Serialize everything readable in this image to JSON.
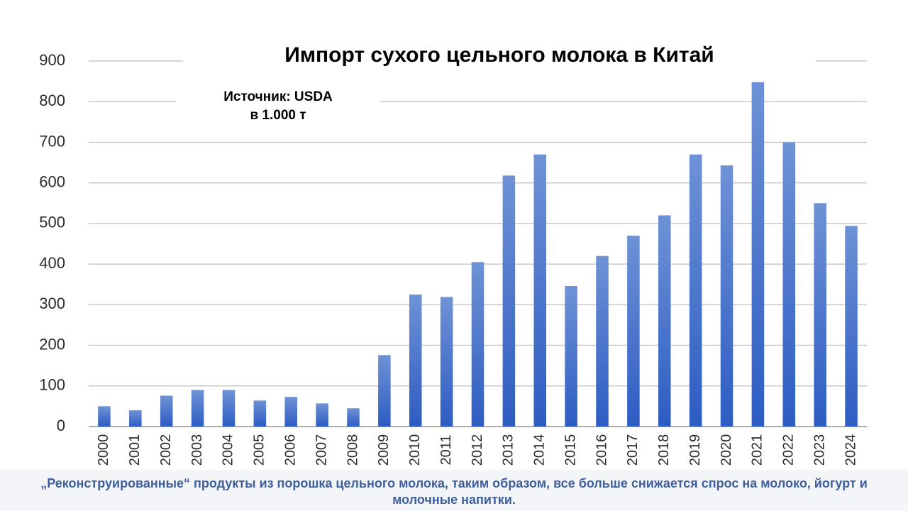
{
  "chart_data": {
    "type": "bar",
    "title": "Импорт сухого цельного молока в Китай",
    "subtitle": [
      "Источник: USDA",
      "в 1.000 т"
    ],
    "categories": [
      "2000",
      "2001",
      "2002",
      "2003",
      "2004",
      "2005",
      "2006",
      "2007",
      "2008",
      "2009",
      "2010",
      "2011",
      "2012",
      "2013",
      "2014",
      "2015",
      "2016",
      "2017",
      "2018",
      "2019",
      "2020",
      "2021",
      "2022",
      "2023",
      "2024"
    ],
    "values": [
      50,
      40,
      76,
      90,
      90,
      64,
      73,
      57,
      45,
      176,
      325,
      319,
      405,
      618,
      670,
      346,
      420,
      470,
      520,
      670,
      643,
      848,
      700,
      550,
      494
    ],
    "color": "#3a66c8",
    "ylim": [
      0,
      900
    ],
    "yticks": [
      0,
      100,
      200,
      300,
      400,
      500,
      600,
      700,
      800,
      900
    ],
    "grid": true
  },
  "footer": "„Реконструированные“ продукты из порошка цельного молока, таким образом, все больше снижается спрос на молоко, йогурт и молочные напитки."
}
